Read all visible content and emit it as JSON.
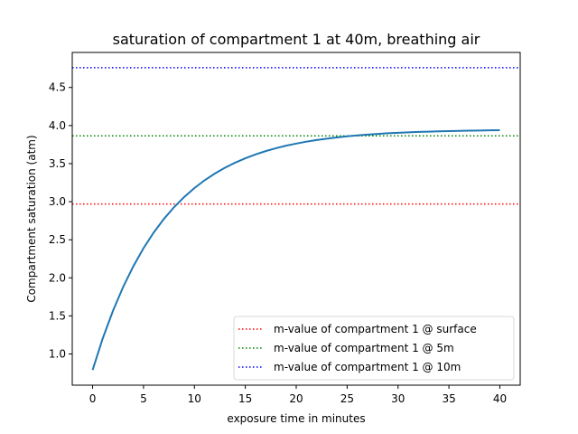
{
  "chart_data": {
    "type": "line",
    "title": "saturation of compartment 1 at 40m, breathing air",
    "xlabel": "exposure time in minutes",
    "ylabel": "Compartment saturation (atm)",
    "xlim": [
      -2,
      42
    ],
    "ylim": [
      0.59,
      4.96
    ],
    "xticks": [
      0,
      5,
      10,
      15,
      20,
      25,
      30,
      35,
      40
    ],
    "yticks": [
      1.0,
      1.5,
      2.0,
      2.5,
      3.0,
      3.5,
      4.0,
      4.5
    ],
    "xtick_labels": [
      "0",
      "5",
      "10",
      "15",
      "20",
      "25",
      "30",
      "35",
      "40"
    ],
    "ytick_labels": [
      "1.0",
      "1.5",
      "2.0",
      "2.5",
      "3.0",
      "3.5",
      "4.0",
      "4.5"
    ],
    "grid": false,
    "legend_position": "lower right",
    "series": [
      {
        "name": "compartment saturation",
        "style": "solid",
        "color": "#1f77b4",
        "x": [
          0,
          1,
          2,
          3,
          4,
          5,
          6,
          7,
          8,
          9,
          10,
          11,
          12,
          13,
          14,
          15,
          16,
          17,
          18,
          19,
          20,
          21,
          22,
          23,
          24,
          25,
          26,
          27,
          28,
          29,
          30,
          31,
          32,
          33,
          34,
          35,
          36,
          37,
          38,
          39,
          40
        ],
        "values": [
          0.79,
          1.206,
          1.567,
          1.88,
          2.152,
          2.389,
          2.594,
          2.773,
          2.928,
          3.062,
          3.179,
          3.281,
          3.369,
          3.446,
          3.512,
          3.57,
          3.62,
          3.664,
          3.702,
          3.735,
          3.763,
          3.788,
          3.81,
          3.828,
          3.844,
          3.858,
          3.871,
          3.881,
          3.89,
          3.898,
          3.905,
          3.911,
          3.916,
          3.92,
          3.924,
          3.927,
          3.93,
          3.933,
          3.935,
          3.937,
          3.939
        ]
      }
    ],
    "hlines": [
      {
        "name": "m-value of compartment 1 @ surface",
        "y": 2.97,
        "color": "#ff0000",
        "style": "dotted"
      },
      {
        "name": "m-value of compartment 1 @ 5m",
        "y": 3.865,
        "color": "#008000",
        "style": "dotted"
      },
      {
        "name": "m-value of compartment 1 @ 10m",
        "y": 4.76,
        "color": "#0000ff",
        "style": "dotted"
      }
    ],
    "legend": [
      "m-value of compartment 1 @ surface",
      "m-value of compartment 1 @ 5m",
      "m-value of compartment 1 @ 10m"
    ]
  }
}
